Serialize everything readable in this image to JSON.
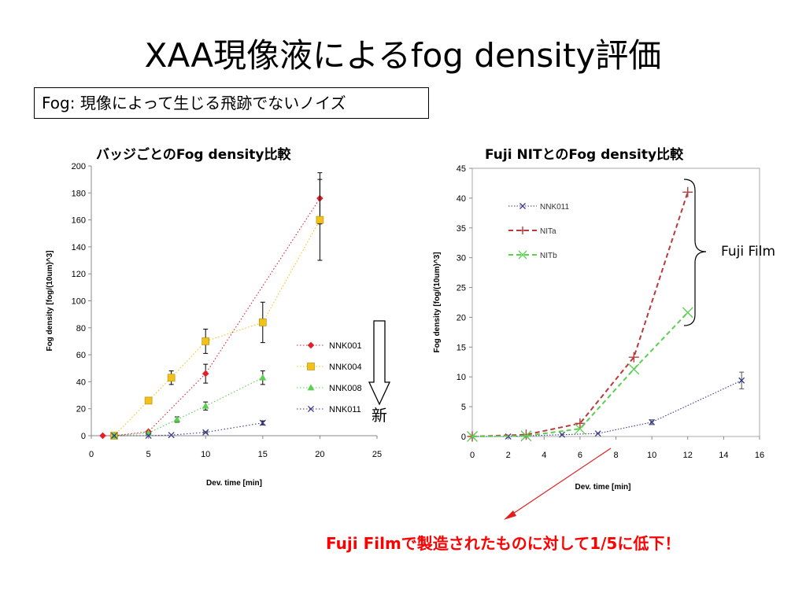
{
  "slide": {
    "title": "XAA現像液によるfog density評価",
    "definition": "Fog: 現像によって生じる飛跡でないノイズ",
    "bracket_label": "Fuji Film",
    "arrow_label": "新",
    "conclusion": "Fuji Filmで製造されたものに対して1/5に低下！"
  },
  "colors": {
    "NNK001": "#e0202a",
    "NNK004": "#f2c21a",
    "NNK008": "#5ad050",
    "NNK011": "#3a3a8a",
    "NITa": "#b83a3a",
    "NITb": "#5ad050",
    "conclusion": "#ff0000"
  },
  "chart_data": [
    {
      "type": "scatter",
      "title": "バッジごとのFog density比較",
      "xlabel": "Dev. time [min]",
      "ylabel": "Fog density [fog/(10um)^3]",
      "xlim": [
        0,
        25
      ],
      "ylim": [
        0,
        200
      ],
      "xticks": [
        0,
        5,
        10,
        15,
        20,
        25
      ],
      "yticks": [
        0,
        20,
        40,
        60,
        80,
        100,
        120,
        140,
        160,
        180,
        200
      ],
      "legend_position": "right",
      "series": [
        {
          "name": "NNK001",
          "marker": "diamond",
          "line": "dotted",
          "x": [
            1,
            2,
            5,
            10,
            20
          ],
          "y": [
            0,
            0,
            3,
            46,
            176
          ],
          "err": [
            null,
            null,
            null,
            7,
            19
          ]
        },
        {
          "name": "NNK004",
          "marker": "square",
          "line": "dotted",
          "x": [
            2,
            5,
            7,
            10,
            15,
            20
          ],
          "y": [
            0,
            26,
            43,
            70,
            84,
            160
          ],
          "err": [
            null,
            2,
            5,
            9,
            15,
            30
          ]
        },
        {
          "name": "NNK008",
          "marker": "triangle",
          "line": "dotted",
          "x": [
            2,
            5,
            7.5,
            10,
            15
          ],
          "y": [
            0,
            2,
            12,
            22,
            43
          ],
          "err": [
            null,
            null,
            2,
            3,
            5
          ]
        },
        {
          "name": "NNK011",
          "marker": "x",
          "line": "dotted",
          "x": [
            2,
            5,
            7,
            10,
            15
          ],
          "y": [
            0,
            0,
            0.5,
            2.5,
            9.5
          ],
          "err": [
            null,
            null,
            null,
            0.5,
            1.5
          ]
        }
      ]
    },
    {
      "type": "line",
      "title": "Fuji NITとのFog density比較",
      "xlabel": "Dev. time [min]",
      "ylabel": "Fog density [fog/(10um)^3]",
      "xlim": [
        0,
        16
      ],
      "ylim": [
        0,
        45
      ],
      "xticks": [
        0,
        2,
        4,
        6,
        8,
        10,
        12,
        14,
        16
      ],
      "yticks": [
        0,
        5,
        10,
        15,
        20,
        25,
        30,
        35,
        40,
        45
      ],
      "legend_position": "top-left",
      "series": [
        {
          "name": "NNK011",
          "marker": "x",
          "line": "dotted",
          "x": [
            0,
            2,
            3,
            5,
            7,
            10,
            15
          ],
          "y": [
            0,
            0,
            0.1,
            0.3,
            0.5,
            2.4,
            9.4
          ],
          "err": [
            null,
            null,
            null,
            null,
            null,
            0.4,
            1.4
          ]
        },
        {
          "name": "NITa",
          "marker": "plus",
          "line": "dashed",
          "x": [
            0,
            3,
            6,
            9,
            12
          ],
          "y": [
            0,
            0.3,
            2.2,
            13.3,
            41
          ],
          "err": [
            null,
            null,
            null,
            null,
            null
          ]
        },
        {
          "name": "NITb",
          "marker": "x",
          "line": "dashed",
          "x": [
            0,
            3,
            6,
            9,
            12
          ],
          "y": [
            0,
            0.1,
            1.3,
            11.3,
            20.8
          ],
          "err": [
            null,
            null,
            null,
            null,
            null
          ]
        }
      ]
    }
  ]
}
